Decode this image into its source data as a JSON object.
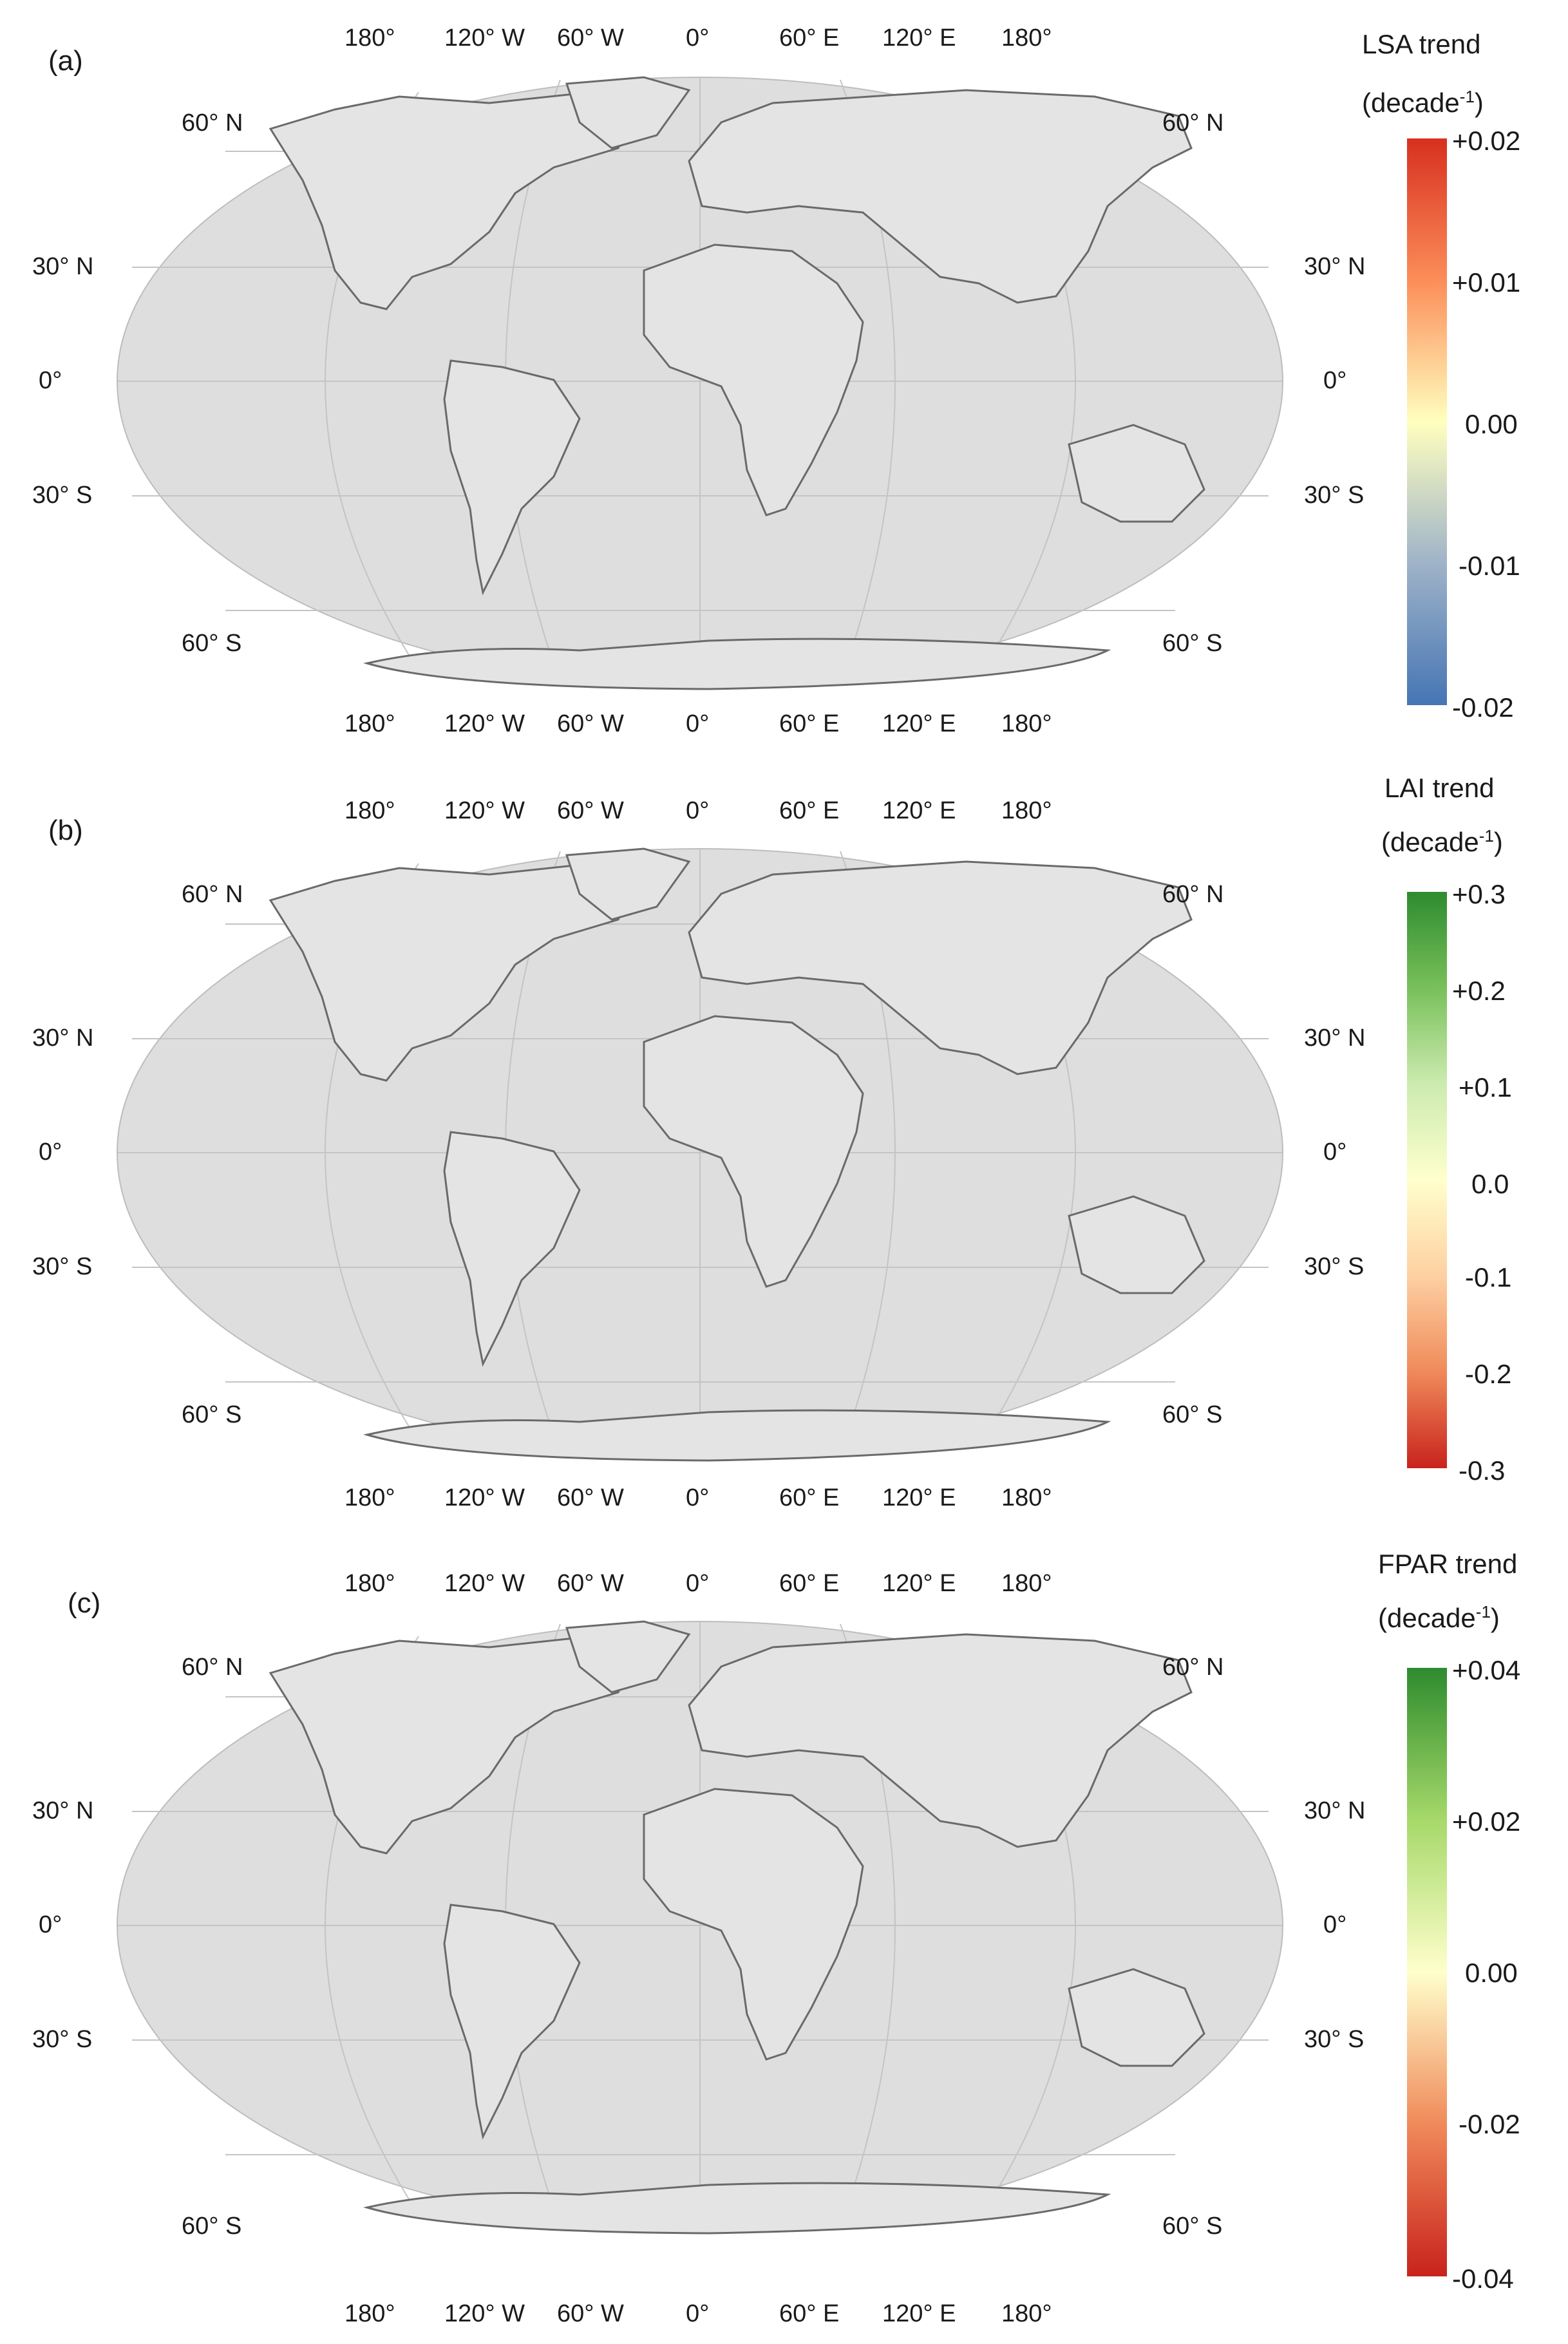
{
  "lon_labels": [
    "180°",
    "120° W",
    "60° W",
    "0°",
    "60° E",
    "120° E",
    "180°"
  ],
  "lat_labels": {
    "n60": "60° N",
    "n30": "30° N",
    "eq": "0°",
    "s30": "30° S",
    "s60": "60° S"
  },
  "panels": [
    {
      "label": "(a)",
      "colorbar_title": "LSA trend",
      "unit_base": "(decade",
      "unit_exp": "-1",
      "unit_close": ")",
      "ticks": [
        "+0.02",
        "+0.01",
        "0.00",
        "-0.01",
        "-0.02"
      ],
      "colors": [
        "#d7301f",
        "#fc8d59",
        "#ffffbf",
        "#9fb3c8",
        "#4575b4"
      ]
    },
    {
      "label": "(b)",
      "colorbar_title": "LAI trend",
      "unit_base": "(decade",
      "unit_exp": "-1",
      "unit_close": ")",
      "ticks": [
        "+0.3",
        "+0.2",
        "+0.1",
        "0.0",
        "-0.1",
        "-0.2",
        "-0.3"
      ],
      "colors": [
        "#2e8b2e",
        "#78c05a",
        "#ccebb0",
        "#ffffcc",
        "#fdd0a2",
        "#f08a5a",
        "#c8231c"
      ]
    },
    {
      "label": "(c)",
      "colorbar_title": "FPAR trend",
      "unit_base": "(decade",
      "unit_exp": "-1",
      "unit_close": ")",
      "ticks": [
        "+0.04",
        "+0.02",
        "0.00",
        "-0.02",
        "-0.04"
      ],
      "colors": [
        "#2e8b2e",
        "#a6d96a",
        "#ffffcc",
        "#f08a5a",
        "#c8231c"
      ]
    }
  ]
}
